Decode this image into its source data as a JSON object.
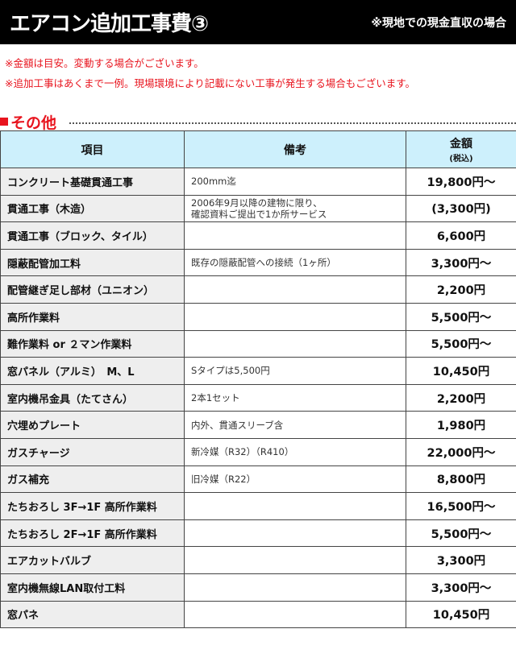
{
  "header": {
    "title": "エアコン追加工事費③",
    "subtitle": "※現地での現金直収の場合"
  },
  "notes": [
    "※金額は目安。変動する場合がございます。",
    "※追加工事はあくまで一例。現場環境により記載にない工事が発生する場合もございます。"
  ],
  "section": {
    "marker": "■",
    "title": "その他"
  },
  "colors": {
    "accent": "#e8141e",
    "header_bg": "#000000",
    "table_header_bg": "#cdf0fc",
    "item_bg": "#eeeeee"
  },
  "table": {
    "headers": {
      "item": "項目",
      "memo": "備考",
      "price": "金額",
      "price_note": "(税込)"
    },
    "rows": [
      {
        "item": "コンクリート基礎貫通工事",
        "memo": "200mm迄",
        "price": "19,800円〜"
      },
      {
        "item": "貫通工事（木造）",
        "memo": "2006年9月以降の建物に限り、\n確認資料ご提出で1か所サービス",
        "price": "(3,300円)"
      },
      {
        "item": "貫通工事（ブロック、タイル）",
        "memo": "",
        "price": "6,600円"
      },
      {
        "item": "隠蔽配管加工料",
        "memo": "既存の隠蔽配管への接続（1ヶ所）",
        "price": "3,300円〜"
      },
      {
        "item": "配管継ぎ足し部材（ユニオン）",
        "memo": "",
        "price": "2,200円"
      },
      {
        "item": "高所作業料",
        "memo": "",
        "price": "5,500円〜"
      },
      {
        "item": "難作業料 or ２マン作業料",
        "memo": "",
        "price": "5,500円〜"
      },
      {
        "item": "窓パネル（アルミ）　M、L",
        "memo": "Sタイプは5,500円",
        "price": "10,450円"
      },
      {
        "item": "室内機吊金具（たてさん）",
        "memo": "2本1セット",
        "price": "2,200円"
      },
      {
        "item": "穴埋めプレート",
        "memo": "内外、貫通スリーブ含",
        "price": "1,980円"
      },
      {
        "item": "ガスチャージ",
        "memo": "新冷媒（R32）（R410）",
        "price": "22,000円〜"
      },
      {
        "item": "ガス補充",
        "memo": "旧冷媒（R22）",
        "price": "8,800円"
      },
      {
        "item": "たちおろし 3F→1F 高所作業料",
        "memo": "",
        "price": "16,500円〜"
      },
      {
        "item": "たちおろし 2F→1F 高所作業料",
        "memo": "",
        "price": "5,500円〜"
      },
      {
        "item": "エアカットバルブ",
        "memo": "",
        "price": "3,300円"
      },
      {
        "item": "室内機無線LAN取付工料",
        "memo": "",
        "price": "3,300円〜"
      },
      {
        "item": "窓パネ",
        "memo": "",
        "price": "10,450円"
      }
    ]
  }
}
